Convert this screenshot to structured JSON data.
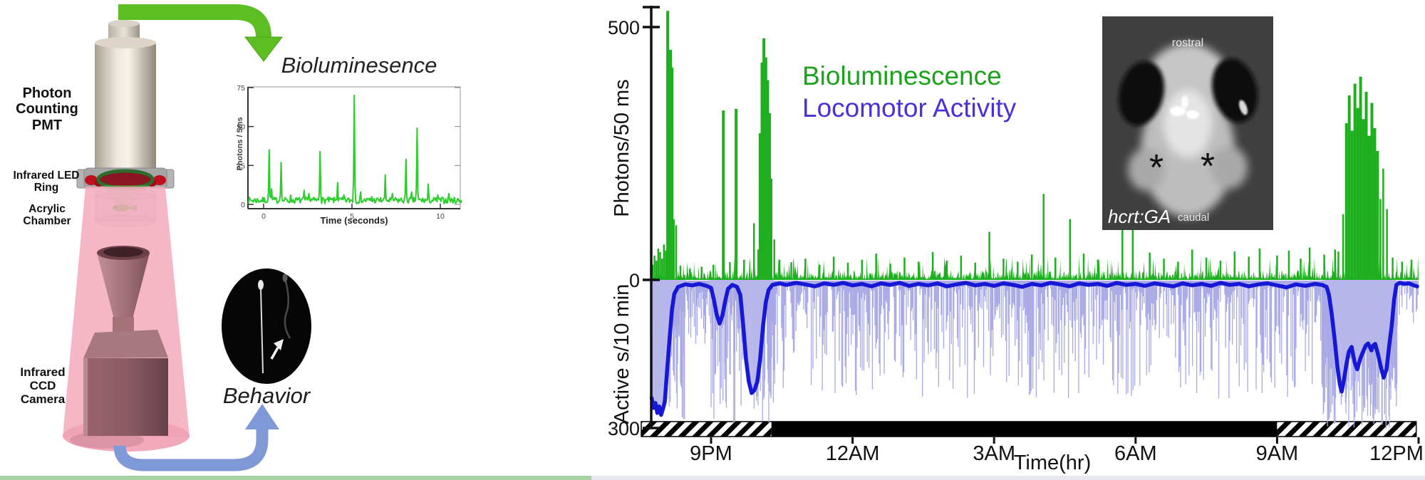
{
  "left_panel": {
    "pmt_line1": "Photon Counting",
    "pmt_line2": "PMT",
    "led_ring_label": "Infrared LED Ring",
    "chamber_label": "Acrylic Chamber",
    "camera_line1": "Infrared CCD",
    "camera_line2": "Camera",
    "behavior_label": "Behavior",
    "colors": {
      "green_arrow": "#5cbe23",
      "blue_arrow": "#7e99d6"
    }
  },
  "legend": {
    "series": [
      {
        "label": "Bioluminescence",
        "color": "#1da21d"
      },
      {
        "label": "Locomotor Activity",
        "color": "#4d2fd9"
      }
    ]
  },
  "inset": {
    "top_label": "rostral",
    "bottom_label": "caudal",
    "genotype_label": "hcrt:GA",
    "marker_left": "*",
    "marker_right": "*"
  },
  "chart_data": [
    {
      "id": "pmt-trace",
      "type": "line",
      "title": "Bioluminesence",
      "ylabel": "Photons / 5ms",
      "xlabel": "Time (seconds)",
      "yticks": [
        0,
        25,
        50,
        75
      ],
      "xticks": [
        0,
        5,
        10
      ],
      "xlim": [
        -0.9,
        11.2
      ],
      "ylim": [
        0,
        78
      ],
      "color": "#2ecc2e",
      "baseline_max": 4,
      "spikes": [
        [
          0.3,
          35
        ],
        [
          0.45,
          10
        ],
        [
          1.0,
          27
        ],
        [
          1.55,
          6
        ],
        [
          2.3,
          9
        ],
        [
          2.55,
          7
        ],
        [
          3.2,
          34
        ],
        [
          4.2,
          14
        ],
        [
          4.55,
          6
        ],
        [
          5.15,
          70
        ],
        [
          5.5,
          8
        ],
        [
          6.1,
          5
        ],
        [
          6.9,
          19
        ],
        [
          7.3,
          7
        ],
        [
          8.05,
          29
        ],
        [
          8.35,
          8
        ],
        [
          8.7,
          49
        ],
        [
          9.3,
          13
        ],
        [
          9.85,
          6
        ],
        [
          10.5,
          7
        ]
      ]
    },
    {
      "id": "main-trace",
      "type": "line",
      "xlabel": "Time(hr)",
      "x_unit_note": "clock hours, 21 = 9PM through 36 = 12PM next day",
      "xlim": [
        19.72,
        36.0
      ],
      "xticks": [
        [
          21,
          "9PM"
        ],
        [
          24,
          "12AM"
        ],
        [
          27,
          "3AM"
        ],
        [
          30,
          "6AM"
        ],
        [
          33,
          "9AM"
        ],
        [
          36,
          "12PM"
        ]
      ],
      "zero_label": "0",
      "photons": {
        "label": "Photons/50 ms",
        "tick_label": "500",
        "tick_value": 500,
        "ylim": [
          0,
          540
        ],
        "color": "#1fae1f",
        "noise_max": 18,
        "spikes": [
          [
            19.76,
            30
          ],
          [
            19.8,
            48
          ],
          [
            19.84,
            38
          ],
          [
            19.88,
            62
          ],
          [
            19.92,
            55
          ],
          [
            19.96,
            42
          ],
          [
            20.0,
            70
          ],
          [
            20.04,
            58
          ],
          [
            20.08,
            532
          ],
          [
            20.11,
            300
          ],
          [
            20.14,
            455
          ],
          [
            20.17,
            420
          ],
          [
            20.21,
            120
          ],
          [
            20.26,
            108
          ],
          [
            20.35,
            28
          ],
          [
            20.55,
            22
          ],
          [
            20.8,
            26
          ],
          [
            21.05,
            30
          ],
          [
            21.26,
            335
          ],
          [
            21.4,
            35
          ],
          [
            21.53,
            338
          ],
          [
            21.7,
            40
          ],
          [
            21.91,
            112
          ],
          [
            22.0,
            60
          ],
          [
            22.04,
            290
          ],
          [
            22.08,
            430
          ],
          [
            22.12,
            478
          ],
          [
            22.16,
            440
          ],
          [
            22.2,
            395
          ],
          [
            22.24,
            330
          ],
          [
            22.28,
            200
          ],
          [
            22.34,
            80
          ],
          [
            22.45,
            40
          ],
          [
            22.7,
            35
          ],
          [
            23.0,
            42
          ],
          [
            23.3,
            30
          ],
          [
            23.6,
            46
          ],
          [
            23.9,
            34
          ],
          [
            24.2,
            40
          ],
          [
            24.5,
            52
          ],
          [
            24.8,
            32
          ],
          [
            25.1,
            44
          ],
          [
            25.4,
            36
          ],
          [
            25.7,
            55
          ],
          [
            26.0,
            38
          ],
          [
            26.3,
            48
          ],
          [
            26.6,
            34
          ],
          [
            26.9,
            95
          ],
          [
            27.2,
            42
          ],
          [
            27.5,
            36
          ],
          [
            27.8,
            50
          ],
          [
            28.05,
            170
          ],
          [
            28.3,
            44
          ],
          [
            28.61,
            120
          ],
          [
            28.9,
            52
          ],
          [
            29.2,
            40
          ],
          [
            29.72,
            145
          ],
          [
            29.94,
            110
          ],
          [
            30.3,
            54
          ],
          [
            30.6,
            42
          ],
          [
            30.9,
            36
          ],
          [
            31.2,
            60
          ],
          [
            31.5,
            44
          ],
          [
            31.8,
            38
          ],
          [
            32.1,
            56
          ],
          [
            32.4,
            46
          ],
          [
            32.63,
            62
          ],
          [
            33.0,
            48
          ],
          [
            33.25,
            58
          ],
          [
            33.5,
            42
          ],
          [
            33.69,
            64
          ],
          [
            34.0,
            50
          ],
          [
            34.23,
            60
          ],
          [
            34.3,
            56
          ],
          [
            34.4,
            130
          ],
          [
            34.47,
            310
          ],
          [
            34.53,
            365
          ],
          [
            34.59,
            295
          ],
          [
            34.65,
            388
          ],
          [
            34.71,
            340
          ],
          [
            34.77,
            402
          ],
          [
            34.83,
            318
          ],
          [
            34.89,
            372
          ],
          [
            34.95,
            285
          ],
          [
            35.01,
            350
          ],
          [
            35.07,
            300
          ],
          [
            35.13,
            255
          ],
          [
            35.19,
            160
          ],
          [
            35.25,
            220
          ],
          [
            35.33,
            140
          ],
          [
            35.45,
            44
          ],
          [
            35.65,
            36
          ],
          [
            35.85,
            40
          ]
        ]
      },
      "activity": {
        "label": "Active s/10 min",
        "tick_label": "300",
        "tick_value": 300,
        "ylim": [
          0,
          300
        ],
        "inverted": true,
        "line_color": "#1717d6",
        "raw_color": "#a9a9e6",
        "fill_color": "#b6b6ea",
        "line": [
          [
            19.74,
            238
          ],
          [
            19.78,
            258
          ],
          [
            19.82,
            248
          ],
          [
            19.86,
            268
          ],
          [
            19.9,
            255
          ],
          [
            19.94,
            272
          ],
          [
            19.98,
            260
          ],
          [
            20.02,
            245
          ],
          [
            20.07,
            180
          ],
          [
            20.12,
            120
          ],
          [
            20.17,
            60
          ],
          [
            20.22,
            28
          ],
          [
            20.3,
            14
          ],
          [
            20.45,
            9
          ],
          [
            20.6,
            11
          ],
          [
            20.75,
            8
          ],
          [
            20.9,
            12
          ],
          [
            21.0,
            16
          ],
          [
            21.06,
            40
          ],
          [
            21.12,
            70
          ],
          [
            21.18,
            88
          ],
          [
            21.24,
            72
          ],
          [
            21.3,
            42
          ],
          [
            21.36,
            18
          ],
          [
            21.45,
            10
          ],
          [
            21.55,
            14
          ],
          [
            21.62,
            30
          ],
          [
            21.68,
            90
          ],
          [
            21.74,
            160
          ],
          [
            21.8,
            205
          ],
          [
            21.86,
            228
          ],
          [
            21.92,
            222
          ],
          [
            21.98,
            205
          ],
          [
            22.04,
            160
          ],
          [
            22.1,
            95
          ],
          [
            22.16,
            45
          ],
          [
            22.22,
            20
          ],
          [
            22.3,
            10
          ],
          [
            22.45,
            7
          ],
          [
            22.6,
            10
          ],
          [
            22.8,
            6
          ],
          [
            23.0,
            9
          ],
          [
            23.2,
            13
          ],
          [
            23.4,
            7
          ],
          [
            23.6,
            10
          ],
          [
            23.8,
            6
          ],
          [
            24.0,
            11
          ],
          [
            24.2,
            8
          ],
          [
            24.4,
            13
          ],
          [
            24.6,
            7
          ],
          [
            24.8,
            10
          ],
          [
            25.0,
            6
          ],
          [
            25.2,
            12
          ],
          [
            25.4,
            8
          ],
          [
            25.6,
            11
          ],
          [
            25.8,
            7
          ],
          [
            26.0,
            13
          ],
          [
            26.2,
            9
          ],
          [
            26.4,
            6
          ],
          [
            26.6,
            11
          ],
          [
            26.8,
            8
          ],
          [
            27.0,
            12
          ],
          [
            27.2,
            7
          ],
          [
            27.4,
            10
          ],
          [
            27.6,
            14
          ],
          [
            27.8,
            8
          ],
          [
            28.0,
            11
          ],
          [
            28.2,
            6
          ],
          [
            28.4,
            9
          ],
          [
            28.6,
            13
          ],
          [
            28.8,
            7
          ],
          [
            29.0,
            10
          ],
          [
            29.2,
            8
          ],
          [
            29.4,
            12
          ],
          [
            29.6,
            6
          ],
          [
            29.8,
            10
          ],
          [
            30.0,
            8
          ],
          [
            30.2,
            12
          ],
          [
            30.4,
            7
          ],
          [
            30.6,
            10
          ],
          [
            30.8,
            13
          ],
          [
            31.0,
            7
          ],
          [
            31.2,
            11
          ],
          [
            31.4,
            8
          ],
          [
            31.6,
            12
          ],
          [
            31.8,
            6
          ],
          [
            32.0,
            10
          ],
          [
            32.2,
            8
          ],
          [
            32.4,
            13
          ],
          [
            32.6,
            9
          ],
          [
            32.8,
            7
          ],
          [
            33.0,
            11
          ],
          [
            33.2,
            15
          ],
          [
            33.4,
            9
          ],
          [
            33.6,
            12
          ],
          [
            33.8,
            8
          ],
          [
            33.95,
            10
          ],
          [
            34.05,
            14
          ],
          [
            34.1,
            30
          ],
          [
            34.16,
            70
          ],
          [
            34.22,
            120
          ],
          [
            34.28,
            175
          ],
          [
            34.33,
            210
          ],
          [
            34.37,
            225
          ],
          [
            34.42,
            200
          ],
          [
            34.47,
            170
          ],
          [
            34.52,
            145
          ],
          [
            34.58,
            135
          ],
          [
            34.64,
            165
          ],
          [
            34.7,
            180
          ],
          [
            34.76,
            160
          ],
          [
            34.82,
            145
          ],
          [
            34.88,
            132
          ],
          [
            34.93,
            128
          ],
          [
            35.0,
            142
          ],
          [
            35.04,
            132
          ],
          [
            35.08,
            129
          ],
          [
            35.14,
            150
          ],
          [
            35.2,
            175
          ],
          [
            35.26,
            197
          ],
          [
            35.32,
            180
          ],
          [
            35.38,
            130
          ],
          [
            35.43,
            92
          ],
          [
            35.48,
            40
          ],
          [
            35.53,
            10
          ],
          [
            35.6,
            6
          ],
          [
            35.7,
            8
          ],
          [
            35.8,
            7
          ],
          [
            35.9,
            11
          ],
          [
            35.97,
            13
          ]
        ],
        "fill_regions": [
          [
            19.72,
            20.45
          ],
          [
            20.95,
            22.32
          ],
          [
            33.98,
            35.52
          ]
        ],
        "raw_regions": [
          {
            "from": 19.74,
            "to": 20.45,
            "step": 0.012,
            "min": 40,
            "max": 295,
            "skew": 1.0
          },
          {
            "from": 20.45,
            "to": 21.0,
            "step": 0.015,
            "min": 10,
            "max": 130,
            "skew": 1.8
          },
          {
            "from": 21.0,
            "to": 22.35,
            "step": 0.012,
            "min": 15,
            "max": 290,
            "skew": 1.3
          },
          {
            "from": 22.35,
            "to": 33.95,
            "step": 0.018,
            "min": 8,
            "max": 240,
            "skew": 2.2
          },
          {
            "from": 33.95,
            "to": 35.55,
            "step": 0.01,
            "min": 60,
            "max": 300,
            "skew": 1.0
          },
          {
            "from": 35.55,
            "to": 36.0,
            "step": 0.02,
            "min": 8,
            "max": 90,
            "skew": 2.0
          }
        ]
      },
      "light_dark_bar": {
        "segments": [
          {
            "from": 19.52,
            "to": 22.28,
            "style": "hatched"
          },
          {
            "from": 22.28,
            "to": 33.0,
            "style": "dark"
          },
          {
            "from": 33.0,
            "to": 35.95,
            "style": "hatched"
          }
        ]
      }
    }
  ]
}
